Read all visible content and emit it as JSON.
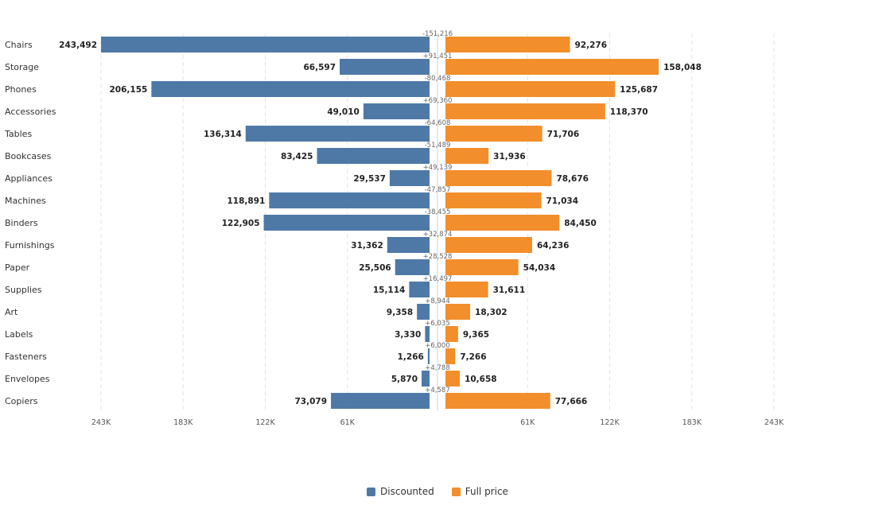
{
  "chart_data": {
    "type": "bar",
    "orientation": "horizontal-diverging",
    "categories": [
      "Chairs",
      "Storage",
      "Phones",
      "Accessories",
      "Tables",
      "Bookcases",
      "Appliances",
      "Machines",
      "Binders",
      "Furnishings",
      "Paper",
      "Supplies",
      "Art",
      "Labels",
      "Fasteners",
      "Envelopes",
      "Copiers"
    ],
    "series": [
      {
        "name": "Discounted",
        "color": "#4e79a7",
        "values": [
          243492,
          66597,
          206155,
          49010,
          136314,
          83425,
          29537,
          118891,
          122905,
          31362,
          25506,
          15114,
          9358,
          3330,
          1266,
          5870,
          73079
        ]
      },
      {
        "name": "Full price",
        "color": "#f28e2b",
        "values": [
          92276,
          158048,
          125687,
          118370,
          71706,
          31936,
          78676,
          71034,
          84450,
          64236,
          54034,
          31611,
          18302,
          9365,
          7266,
          10658,
          77666
        ]
      }
    ],
    "differences": [
      "-151,216",
      "+91,451",
      "-80,468",
      "+69,360",
      "-64,608",
      "-51,489",
      "+49,139",
      "-47,857",
      "-38,455",
      "+32,874",
      "+28,528",
      "+16,497",
      "+8,944",
      "+6,035",
      "+6,000",
      "+4,788",
      "+4,587"
    ],
    "axis_ticks": {
      "left": [
        "243K",
        "183K",
        "122K",
        "61K"
      ],
      "right": [
        "61K",
        "122K",
        "183K",
        "243K"
      ],
      "tick_values": [
        243492,
        182619,
        121746,
        60873
      ]
    },
    "axis_max": 243492,
    "grid": true,
    "legend_position": "bottom-center"
  }
}
